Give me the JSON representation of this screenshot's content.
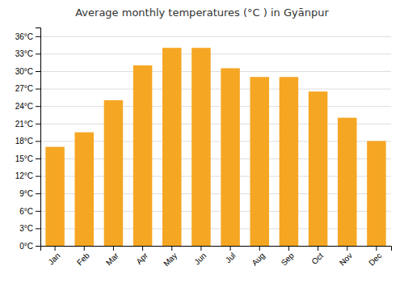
{
  "chart_data": {
    "type": "bar",
    "title": "Average monthly temperatures (°C ) in Gyānpur",
    "categories": [
      "Jan",
      "Feb",
      "Mar",
      "Apr",
      "May",
      "Jun",
      "Jul",
      "Aug",
      "Sep",
      "Oct",
      "Nov",
      "Dec"
    ],
    "values": [
      17.0,
      19.5,
      25.0,
      31.0,
      34.0,
      34.0,
      30.5,
      29.0,
      29.0,
      26.5,
      22.0,
      18.0
    ],
    "color": "#F5A623",
    "ylim": [
      0,
      37.5
    ],
    "yticks": [
      {
        "value": 0,
        "label": "0°C"
      },
      {
        "value": 3,
        "label": "3°C"
      },
      {
        "value": 6,
        "label": "6°C"
      },
      {
        "value": 9,
        "label": "9°C"
      },
      {
        "value": 12,
        "label": "12°C"
      },
      {
        "value": 15,
        "label": "15°C"
      },
      {
        "value": 18,
        "label": "18°C"
      },
      {
        "value": 21,
        "label": "21°C"
      },
      {
        "value": 24,
        "label": "24°C"
      },
      {
        "value": 27,
        "label": "27°C"
      },
      {
        "value": 30,
        "label": "30°C"
      },
      {
        "value": 33,
        "label": "33°C"
      },
      {
        "value": 36,
        "label": "36°C"
      }
    ],
    "grid": true
  }
}
